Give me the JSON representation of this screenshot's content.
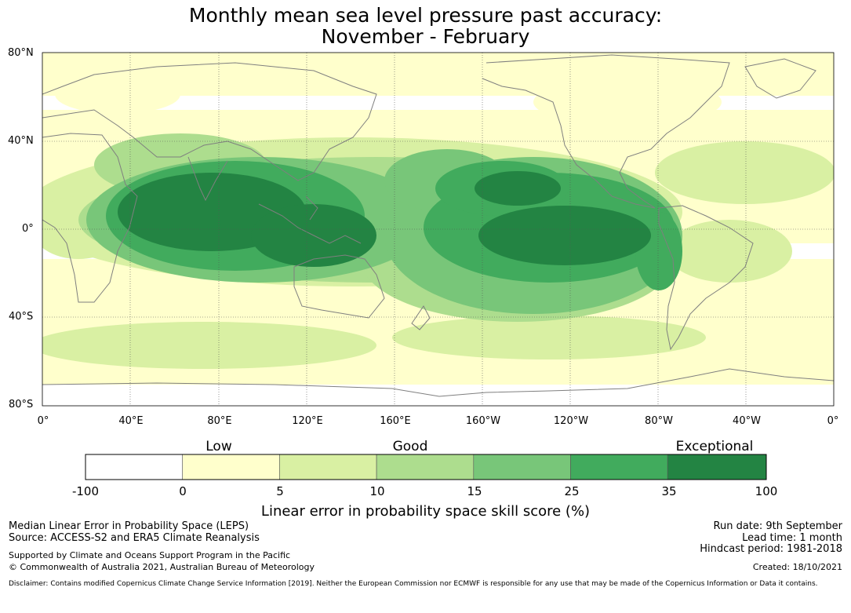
{
  "title": {
    "line1": "Monthly mean sea level pressure past accuracy:",
    "line2": "November - February"
  },
  "map": {
    "lat_labels": [
      "80°N",
      "40°N",
      "0°",
      "40°S",
      "80°S"
    ],
    "lon_labels": [
      "0°",
      "40°E",
      "80°E",
      "120°E",
      "160°E",
      "160°W",
      "120°W",
      "80°W",
      "40°W",
      "0°"
    ],
    "background_color": "#ffffff",
    "coastline_color": "#7f7f7f",
    "layer_colors": [
      "#ffffcc",
      "#d9f0a3",
      "#addd8e",
      "#78c679",
      "#41ab5d",
      "#238443"
    ]
  },
  "colorbar": {
    "category_labels": [
      "Low",
      "Good",
      "Exceptional"
    ],
    "ticks": [
      "-100",
      "0",
      "5",
      "10",
      "15",
      "25",
      "35",
      "100"
    ],
    "colors": [
      "#ffffff",
      "#ffffcc",
      "#d9f0a3",
      "#addd8e",
      "#78c679",
      "#41ab5d",
      "#238443"
    ],
    "label": "Linear error in probability space skill score (%)"
  },
  "footer": {
    "left_line1": "Median Linear Error in Probability Space (LEPS)",
    "left_line2": "Source: ACCESS-S2 and ERA5 Climate Reanalysis",
    "left_line3": "Supported by Climate and Oceans Support Program in the Pacific",
    "left_line4": "© Commonwealth of Australia 2021, Australian Bureau of Meteorology",
    "right_line1": "Run date: 9th September",
    "right_line2": "Lead time: 1 month",
    "right_line3": "Hindcast period: 1981-2018",
    "right_line4": "Created: 18/10/2021",
    "disclaimer": "Disclaimer: Contains modified Copernicus Climate Change Service Information [2019]. Neither the European Commission nor ECMWF is responsible for any use that may be made of the Copernicus Information or Data it contains."
  }
}
